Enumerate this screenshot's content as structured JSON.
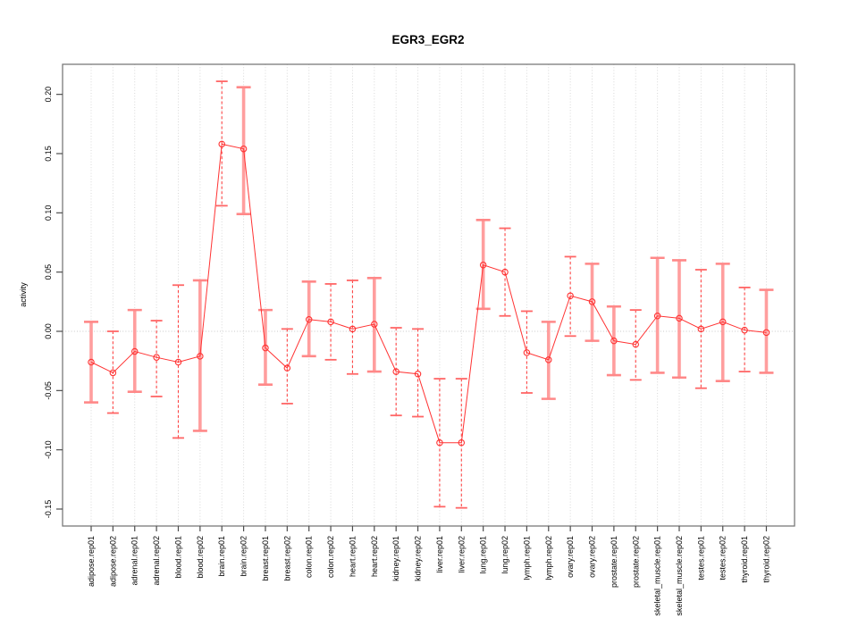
{
  "chart_data": {
    "type": "line",
    "title": "EGR3_EGR2",
    "xlabel": "",
    "ylabel": "activity",
    "legend_position": "none",
    "grid": "vertical-dotted-per-category, dotted-zero-line",
    "x_tick_rotation": 90,
    "y_tick_rotation": 90,
    "ylim": [
      -0.164,
      0.225
    ],
    "yticks": [
      0.2,
      0.15,
      0.1,
      0.05,
      0.0,
      -0.05,
      -0.1,
      -0.15
    ],
    "ytick_labels": [
      "0.20",
      "0.15",
      "0.10",
      "0.05",
      "0.00",
      "-0.05",
      "-0.10",
      "-0.15"
    ],
    "categories": [
      "adipose.rep01",
      "adipose.rep02",
      "adrenal.rep01",
      "adrenal.rep02",
      "blood.rep01",
      "blood.rep02",
      "brain.rep01",
      "brain.rep02",
      "breast.rep01",
      "breast.rep02",
      "colon.rep01",
      "colon.rep02",
      "heart.rep01",
      "heart.rep02",
      "kidney.rep01",
      "kidney.rep02",
      "liver.rep01",
      "liver.rep02",
      "lung.rep01",
      "lung.rep02",
      "lymph.rep01",
      "lymph.rep02",
      "ovary.rep01",
      "ovary.rep02",
      "prostate.rep01",
      "prostate.rep02",
      "skeletal_muscle.rep01",
      "skeletal_muscle.rep02",
      "testes.rep01",
      "testes.rep02",
      "thyroid.rep01",
      "thyroid.rep02"
    ],
    "series": [
      {
        "name": "EGR3_EGR2 activity",
        "marker": "open-circle",
        "values": [
          -0.026,
          -0.035,
          -0.017,
          -0.022,
          -0.026,
          -0.021,
          0.158,
          0.154,
          -0.014,
          -0.031,
          0.01,
          0.008,
          0.002,
          0.006,
          -0.034,
          -0.036,
          -0.094,
          -0.094,
          0.056,
          0.05,
          -0.018,
          -0.024,
          0.03,
          0.025,
          -0.008,
          -0.011,
          0.013,
          0.011,
          0.002,
          0.008,
          0.001,
          -0.001
        ],
        "err_hi": [
          0.008,
          0.0,
          0.018,
          0.009,
          0.039,
          0.043,
          0.211,
          0.206,
          0.018,
          0.002,
          0.042,
          0.04,
          0.043,
          0.045,
          0.003,
          0.002,
          -0.04,
          -0.04,
          0.094,
          0.087,
          0.017,
          0.008,
          0.063,
          0.057,
          0.021,
          0.018,
          0.062,
          0.06,
          0.052,
          0.057,
          0.037,
          0.035
        ],
        "err_lo": [
          -0.06,
          -0.069,
          -0.051,
          -0.055,
          -0.09,
          -0.084,
          0.106,
          0.099,
          -0.045,
          -0.061,
          -0.021,
          -0.024,
          -0.036,
          -0.034,
          -0.071,
          -0.072,
          -0.148,
          -0.149,
          0.019,
          0.013,
          -0.052,
          -0.057,
          -0.004,
          -0.008,
          -0.037,
          -0.041,
          -0.035,
          -0.039,
          -0.048,
          -0.042,
          -0.034,
          -0.035
        ],
        "bar_style": [
          "solid",
          "dashed",
          "solid",
          "dashed",
          "dashed",
          "solid",
          "dashed",
          "solid",
          "solid",
          "dashed",
          "solid",
          "dashed",
          "dashed",
          "solid",
          "dashed",
          "dashed",
          "dashed",
          "dashed",
          "solid",
          "dashed",
          "dashed",
          "solid",
          "dashed",
          "solid",
          "solid",
          "dashed",
          "solid",
          "solid",
          "dashed",
          "solid",
          "dashed",
          "solid"
        ]
      }
    ],
    "colors": {
      "line": "#ff3333",
      "marker": "#ff3333",
      "errorbar_solid": "#ff9e9e",
      "errorbar_dashed": "#ff4444",
      "gridline": "#d8d8d8",
      "zero_line": "#c8c8c8",
      "frame": "#7a7a7a",
      "tick": "#4d4d4d"
    }
  }
}
